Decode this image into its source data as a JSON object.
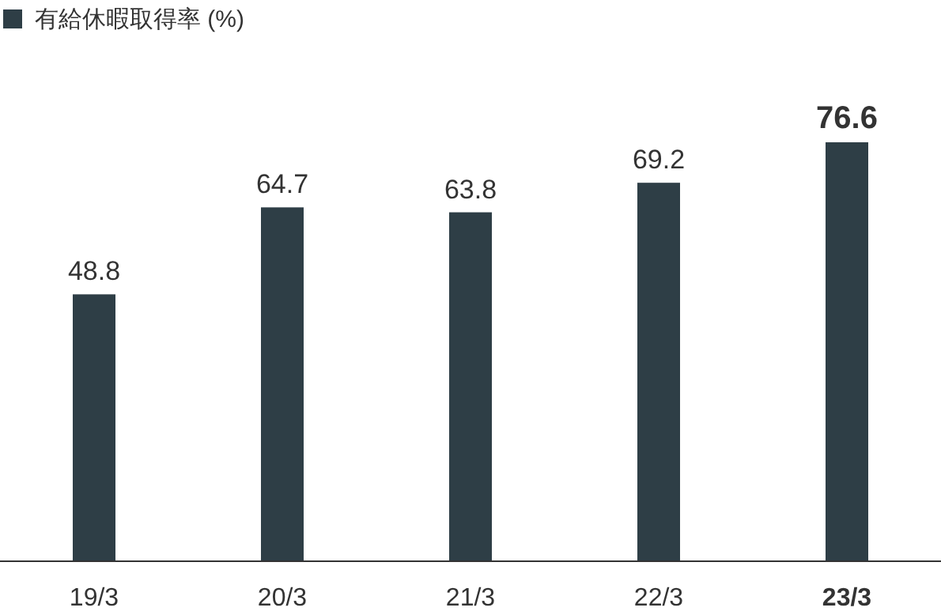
{
  "chart_data": {
    "type": "bar",
    "categories": [
      "19/3",
      "20/3",
      "21/3",
      "22/3",
      "23/3"
    ],
    "series": [
      {
        "name": "有給休暇取得率 (%)",
        "color": "#2e3e46",
        "values": [
          48.8,
          64.7,
          63.8,
          69.2,
          76.6
        ]
      }
    ],
    "data_labels": true,
    "legend": "top left"
  }
}
